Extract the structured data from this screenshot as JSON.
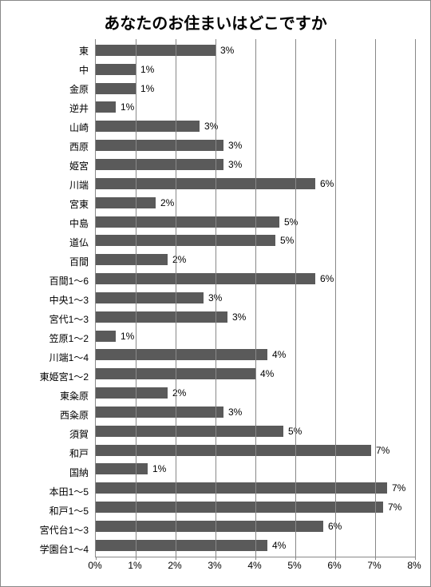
{
  "chart": {
    "type": "bar-horizontal",
    "title": "あなたのお住まいはどこですか",
    "title_fontsize": 20,
    "label_fontsize": 12,
    "value_fontsize": 12,
    "background_color": "#ffffff",
    "border_color": "#888888",
    "grid_color": "#888888",
    "bar_color": "#5a5a5a",
    "x_min": 0,
    "x_max": 8,
    "x_tick_step": 1,
    "x_tick_labels": [
      "0%",
      "1%",
      "2%",
      "3%",
      "4%",
      "5%",
      "6%",
      "7%",
      "8%"
    ],
    "rows": [
      {
        "label": "東",
        "value": 3,
        "text": "3%"
      },
      {
        "label": "中",
        "value": 1,
        "text": "1%"
      },
      {
        "label": "金原",
        "value": 1,
        "text": "1%"
      },
      {
        "label": "逆井",
        "value": 0.5,
        "text": "1%"
      },
      {
        "label": "山崎",
        "value": 2.6,
        "text": "3%"
      },
      {
        "label": "西原",
        "value": 3.2,
        "text": "3%"
      },
      {
        "label": "姫宮",
        "value": 3.2,
        "text": "3%"
      },
      {
        "label": "川端",
        "value": 5.5,
        "text": "6%"
      },
      {
        "label": "宮東",
        "value": 1.5,
        "text": "2%"
      },
      {
        "label": "中島",
        "value": 4.6,
        "text": "5%"
      },
      {
        "label": "道仏",
        "value": 4.5,
        "text": "5%"
      },
      {
        "label": "百間",
        "value": 1.8,
        "text": "2%"
      },
      {
        "label": "百間1～6",
        "value": 5.5,
        "text": "6%"
      },
      {
        "label": "中央1～3",
        "value": 2.7,
        "text": "3%"
      },
      {
        "label": "宮代1～3",
        "value": 3.3,
        "text": "3%"
      },
      {
        "label": "笠原1～2",
        "value": 0.5,
        "text": "1%"
      },
      {
        "label": "川端1～4",
        "value": 4.3,
        "text": "4%"
      },
      {
        "label": "東姫宮1～2",
        "value": 4.0,
        "text": "4%"
      },
      {
        "label": "東粂原",
        "value": 1.8,
        "text": "2%"
      },
      {
        "label": "西粂原",
        "value": 3.2,
        "text": "3%"
      },
      {
        "label": "須賀",
        "value": 4.7,
        "text": "5%"
      },
      {
        "label": "和戸",
        "value": 6.9,
        "text": "7%"
      },
      {
        "label": "国納",
        "value": 1.3,
        "text": "1%"
      },
      {
        "label": "本田1～5",
        "value": 7.3,
        "text": "7%"
      },
      {
        "label": "和戸1～5",
        "value": 7.2,
        "text": "7%"
      },
      {
        "label": "宮代台1～3",
        "value": 5.7,
        "text": "6%"
      },
      {
        "label": "学園台1～4",
        "value": 4.3,
        "text": "4%"
      }
    ]
  }
}
